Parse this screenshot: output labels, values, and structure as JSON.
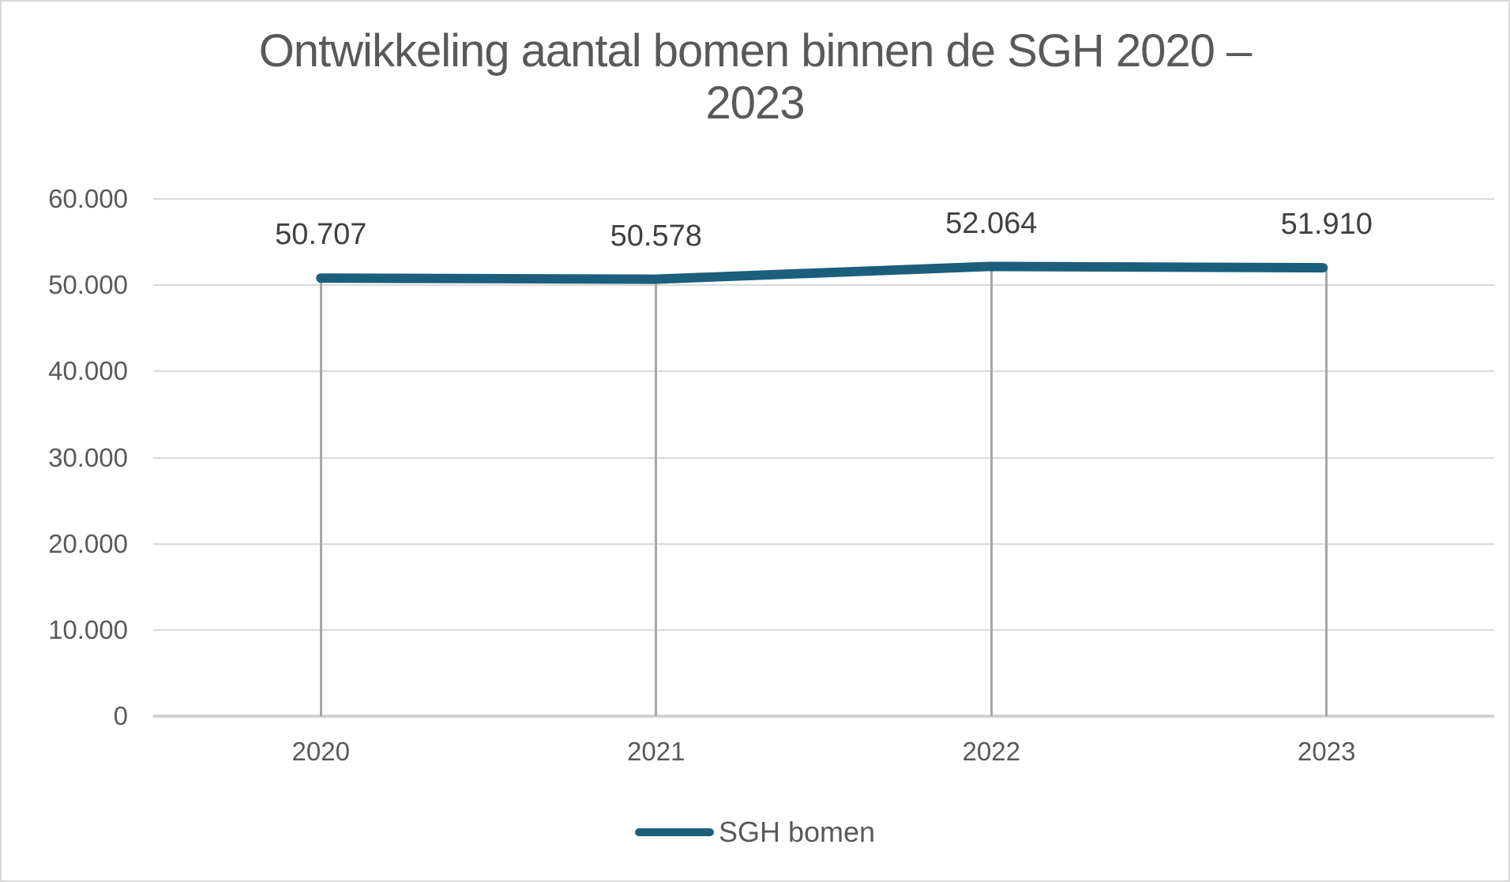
{
  "title": {
    "line1": "Ontwikkeling aantal bomen binnen de SGH 2020 –",
    "line2": "2023"
  },
  "legend": {
    "label": "SGH bomen",
    "swatch_color": "#1b5f7c"
  },
  "colors": {
    "series_line": "#1b5f7c",
    "title_text": "#595959",
    "axis_text": "#595959",
    "data_label_text": "#404040",
    "h_gridline": "#d9d9d9",
    "axis_line": "#d2d2d2",
    "drop_line": "#a6a6a6",
    "frame_border": "#d8d8d8",
    "background": "#ffffff"
  },
  "chart_data": {
    "type": "line",
    "title": "Ontwikkeling aantal bomen binnen de SGH 2020 – 2023",
    "categories": [
      "2020",
      "2021",
      "2022",
      "2023"
    ],
    "series": [
      {
        "name": "SGH bomen",
        "values": [
          50707,
          50578,
          52064,
          51910
        ],
        "color": "#1b5f7c"
      }
    ],
    "data_labels": [
      "50.707",
      "50.578",
      "52.064",
      "51.910"
    ],
    "xlabel": "",
    "ylabel": "",
    "ylim": [
      0,
      60000
    ],
    "y_ticks": [
      {
        "value": 60000,
        "label": "60.000"
      },
      {
        "value": 50000,
        "label": "50.000"
      },
      {
        "value": 40000,
        "label": "40.000"
      },
      {
        "value": 30000,
        "label": "30.000"
      },
      {
        "value": 20000,
        "label": "20.000"
      },
      {
        "value": 10000,
        "label": "10.000"
      },
      {
        "value": 0,
        "label": "0"
      }
    ],
    "grid": {
      "horizontal": true,
      "vertical": false,
      "drop_lines": true
    },
    "legend_position": "bottom-center"
  }
}
